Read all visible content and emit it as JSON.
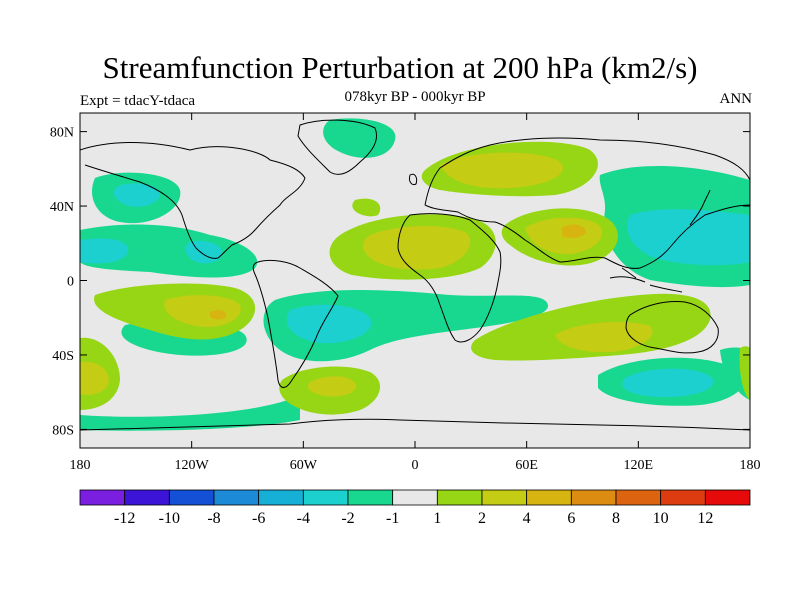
{
  "title": "Streamfunction Perturbation at 200 hPa (km2/s)",
  "subtitle": "078kyr BP - 000kyr BP",
  "experiment": "Expt = tdacY-tdaca",
  "season": "ANN",
  "map": {
    "projection": "cylindrical equidistant",
    "lon_range": [
      -180,
      180
    ],
    "lat_range": [
      -90,
      90
    ],
    "background_color": "#e8e8e8",
    "lat_ticks": [
      {
        "value": 80,
        "label": "80N"
      },
      {
        "value": 40,
        "label": "40N"
      },
      {
        "value": 0,
        "label": "0"
      },
      {
        "value": -40,
        "label": "40S"
      },
      {
        "value": -80,
        "label": "80S"
      }
    ],
    "lon_ticks": [
      {
        "value": -180,
        "label": "180"
      },
      {
        "value": -120,
        "label": "120W"
      },
      {
        "value": -60,
        "label": "60W"
      },
      {
        "value": 0,
        "label": "0"
      },
      {
        "value": 60,
        "label": "60E"
      },
      {
        "value": 120,
        "label": "120E"
      },
      {
        "value": 180,
        "label": "180"
      }
    ]
  },
  "colorbar": {
    "colors": [
      "#7a1fe0",
      "#3c14d8",
      "#1450d6",
      "#1c8ad6",
      "#16b0d6",
      "#1cd0d0",
      "#18d890",
      "#e8e8e8",
      "#96d614",
      "#c4cc14",
      "#d8b410",
      "#dc8c10",
      "#dc6410",
      "#dc3c10",
      "#e60a0a"
    ],
    "labels": [
      "-12",
      "-10",
      "-8",
      "-6",
      "-4",
      "-2",
      "-1",
      "1",
      "2",
      "4",
      "6",
      "8",
      "10",
      "12"
    ]
  },
  "field_colors": {
    "pos1": "#96d614",
    "pos2": "#c4cc14",
    "pos3": "#d8b410",
    "pos4": "#dc8c10",
    "neg1": "#18d890",
    "neg2": "#1cd0d0"
  }
}
